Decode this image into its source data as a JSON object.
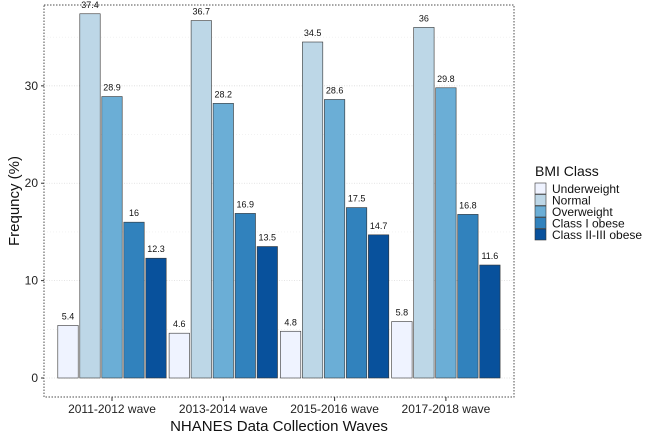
{
  "chart_data": {
    "type": "bar",
    "title": "",
    "xlabel": "NHANES Data Collection Waves",
    "ylabel": "Frequncy (%)",
    "categories": [
      "2011-2012 wave",
      "2013-2014 wave",
      "2015-2016 wave",
      "2017-2018 wave"
    ],
    "ylim": [
      0,
      38.3
    ],
    "yticks": [
      0,
      10,
      20,
      30
    ],
    "grid": true,
    "legend": {
      "title": "BMI Class",
      "placement": "right"
    },
    "series": [
      {
        "name": "Underweight",
        "color": "#eff3ff",
        "values": [
          5.4,
          4.6,
          4.8,
          5.8
        ],
        "labels": [
          "5.4",
          "4.6",
          "4.8",
          "5.8"
        ]
      },
      {
        "name": "Normal",
        "color": "#bdd7e7",
        "values": [
          37.4,
          36.7,
          34.5,
          36
        ],
        "labels": [
          "37.4",
          "36.7",
          "34.5",
          "36"
        ]
      },
      {
        "name": "Overweight",
        "color": "#6baed6",
        "values": [
          28.9,
          28.2,
          28.6,
          29.8
        ],
        "labels": [
          "28.9",
          "28.2",
          "28.6",
          "29.8"
        ]
      },
      {
        "name": "Class I obese",
        "color": "#3182bd",
        "values": [
          16,
          16.9,
          17.5,
          16.8
        ],
        "labels": [
          "16",
          "16.9",
          "17.5",
          "16.8"
        ]
      },
      {
        "name": "Class II-III obese",
        "color": "#08519c",
        "values": [
          12.3,
          13.5,
          14.7,
          11.6
        ],
        "labels": [
          "12.3",
          "13.5",
          "14.7",
          "11.6"
        ]
      }
    ]
  }
}
